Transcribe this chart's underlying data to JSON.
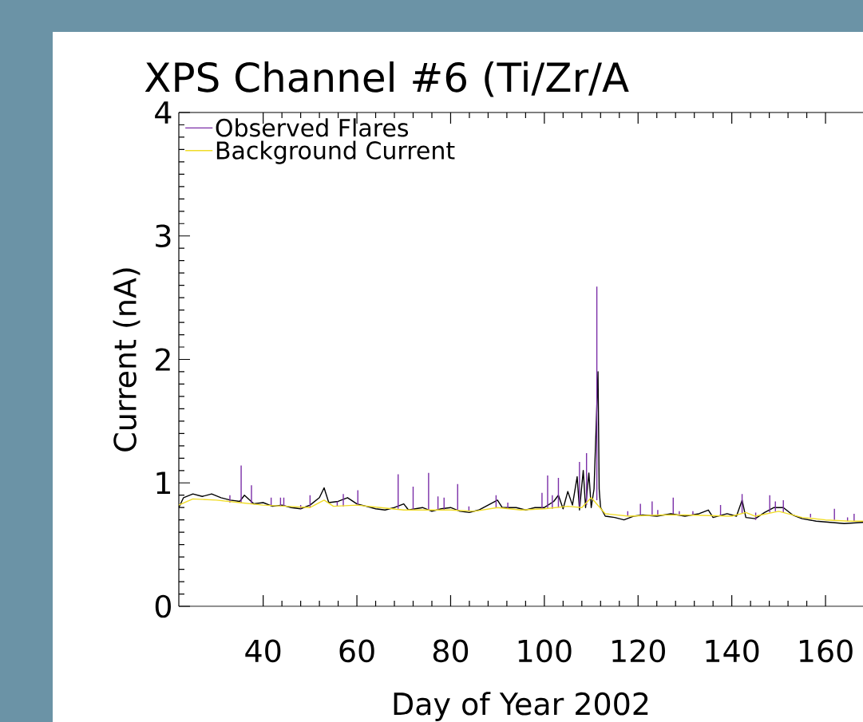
{
  "chart_data": {
    "type": "line",
    "title": "XPS Channel #6 (Ti/Zr/A",
    "xlabel": "Day of Year 2002",
    "ylabel": "Current (nA)",
    "xlim": [
      22,
      168
    ],
    "xticks": [
      40,
      60,
      80,
      100,
      120,
      140,
      160
    ],
    "ylim": [
      0,
      4
    ],
    "yticks": [
      0,
      1,
      2,
      3,
      4
    ],
    "legend": "top left",
    "marker": "none",
    "line_style": "solid",
    "series": [
      {
        "color": "#000000",
        "x": [
          22,
          23,
          25,
          27,
          29,
          31,
          33,
          35,
          36,
          38,
          40,
          42,
          44,
          46,
          48,
          50,
          52,
          53,
          54,
          56,
          58,
          60,
          62,
          64,
          66,
          68,
          70,
          71,
          74,
          76,
          78,
          80,
          82,
          84,
          86,
          88,
          90,
          91,
          94,
          96,
          98,
          100,
          102,
          103,
          104,
          105,
          106,
          107,
          107.5,
          108.3,
          108.8,
          109.5,
          110,
          110.6,
          111.45,
          111.7,
          112,
          113,
          115,
          117,
          119,
          121,
          124,
          127,
          130,
          133,
          135,
          136,
          139,
          141,
          142.2,
          143,
          145,
          147,
          149,
          151,
          153,
          155,
          158,
          161,
          164,
          168
        ],
        "values": [
          0.8,
          0.88,
          0.91,
          0.89,
          0.91,
          0.88,
          0.86,
          0.85,
          0.9,
          0.83,
          0.84,
          0.81,
          0.82,
          0.8,
          0.79,
          0.82,
          0.88,
          0.96,
          0.84,
          0.85,
          0.88,
          0.83,
          0.81,
          0.79,
          0.78,
          0.8,
          0.83,
          0.78,
          0.8,
          0.77,
          0.79,
          0.8,
          0.77,
          0.76,
          0.78,
          0.82,
          0.86,
          0.8,
          0.8,
          0.78,
          0.8,
          0.8,
          0.85,
          0.9,
          0.79,
          0.93,
          0.82,
          1.05,
          0.78,
          1.1,
          0.8,
          1.08,
          0.8,
          0.95,
          1.9,
          0.95,
          0.8,
          0.73,
          0.72,
          0.7,
          0.73,
          0.74,
          0.73,
          0.75,
          0.73,
          0.75,
          0.78,
          0.72,
          0.75,
          0.73,
          0.86,
          0.72,
          0.71,
          0.76,
          0.8,
          0.8,
          0.74,
          0.71,
          0.69,
          0.68,
          0.67,
          0.68
        ]
      },
      {
        "name": "Observed Flares",
        "color": "#7b2fa8",
        "x": [
          32.9,
          32.9,
          null,
          35.3,
          35.3,
          null,
          37.5,
          37.5,
          null,
          41.7,
          41.7,
          null,
          43.7,
          43.7,
          null,
          44.4,
          44.4,
          null,
          48,
          48,
          null,
          50,
          50,
          null,
          55.8,
          55.8,
          null,
          57.1,
          57.1,
          null,
          60.2,
          60.2,
          null,
          68.8,
          68.8,
          null,
          72,
          72,
          null,
          75.3,
          75.3,
          null,
          77.3,
          77.3,
          null,
          78.6,
          78.6,
          null,
          81.5,
          81.5,
          null,
          83.9,
          83.9,
          null,
          89.7,
          89.7,
          null,
          92.2,
          92.2,
          null,
          99.5,
          99.5,
          null,
          100.7,
          100.7,
          null,
          101.7,
          101.7,
          null,
          103,
          103,
          null,
          107.5,
          107.5,
          null,
          109,
          109,
          null,
          111.2,
          111.2,
          null,
          117.8,
          117.8,
          null,
          120.5,
          120.5,
          null,
          123,
          123,
          null,
          124.2,
          124.2,
          null,
          127.5,
          127.5,
          null,
          128.8,
          128.8,
          null,
          131.7,
          131.7,
          null,
          137.6,
          137.6,
          null,
          142.2,
          142.2,
          null,
          145.1,
          145.1,
          null,
          148.1,
          148.1,
          null,
          149.3,
          149.3,
          null,
          151,
          151,
          null,
          156.8,
          156.8,
          null,
          161.9,
          161.9,
          null,
          164.7,
          164.7,
          null,
          166.1,
          166.1,
          null
        ],
        "values": [
          0.84,
          0.9,
          null,
          0.84,
          1.14,
          null,
          0.83,
          0.98,
          null,
          0.82,
          0.88,
          null,
          0.81,
          0.88,
          null,
          0.81,
          0.88,
          null,
          0.79,
          0.82,
          null,
          0.8,
          0.9,
          null,
          0.81,
          0.85,
          null,
          0.81,
          0.91,
          null,
          0.82,
          0.94,
          null,
          0.79,
          1.07,
          null,
          0.78,
          0.97,
          null,
          0.78,
          1.08,
          null,
          0.78,
          0.89,
          null,
          0.78,
          0.88,
          null,
          0.78,
          0.99,
          null,
          0.77,
          0.81,
          null,
          0.8,
          0.9,
          null,
          0.79,
          0.84,
          null,
          0.79,
          0.92,
          null,
          0.79,
          1.06,
          null,
          0.79,
          0.9,
          null,
          0.8,
          1.04,
          null,
          0.8,
          1.17,
          null,
          0.82,
          1.24,
          null,
          0.86,
          2.59,
          null,
          0.73,
          0.77,
          null,
          0.74,
          0.83,
          null,
          0.74,
          0.85,
          null,
          0.74,
          0.78,
          null,
          0.75,
          0.88,
          null,
          0.74,
          0.77,
          null,
          0.74,
          0.77,
          null,
          0.73,
          0.82,
          null,
          0.75,
          0.91,
          null,
          0.7,
          0.76,
          null,
          0.76,
          0.9,
          null,
          0.77,
          0.85,
          null,
          0.76,
          0.86,
          null,
          0.72,
          0.75,
          null,
          0.7,
          0.79,
          null,
          0.69,
          0.72,
          null,
          0.69,
          0.75,
          null
        ]
      },
      {
        "name": "Background Current",
        "color": "#f0dc28",
        "x": [
          22,
          25,
          30,
          35,
          40,
          45,
          50,
          53,
          55,
          60,
          65,
          70,
          80,
          85,
          90,
          95,
          100,
          105,
          108,
          110,
          113,
          118,
          125,
          130,
          140,
          143,
          145,
          150,
          155,
          160,
          165,
          168
        ],
        "values": [
          0.82,
          0.87,
          0.86,
          0.84,
          0.82,
          0.81,
          0.8,
          0.86,
          0.81,
          0.82,
          0.8,
          0.78,
          0.78,
          0.77,
          0.8,
          0.78,
          0.79,
          0.81,
          0.8,
          0.88,
          0.75,
          0.73,
          0.74,
          0.74,
          0.73,
          0.76,
          0.73,
          0.77,
          0.72,
          0.7,
          0.69,
          0.69
        ]
      }
    ]
  }
}
